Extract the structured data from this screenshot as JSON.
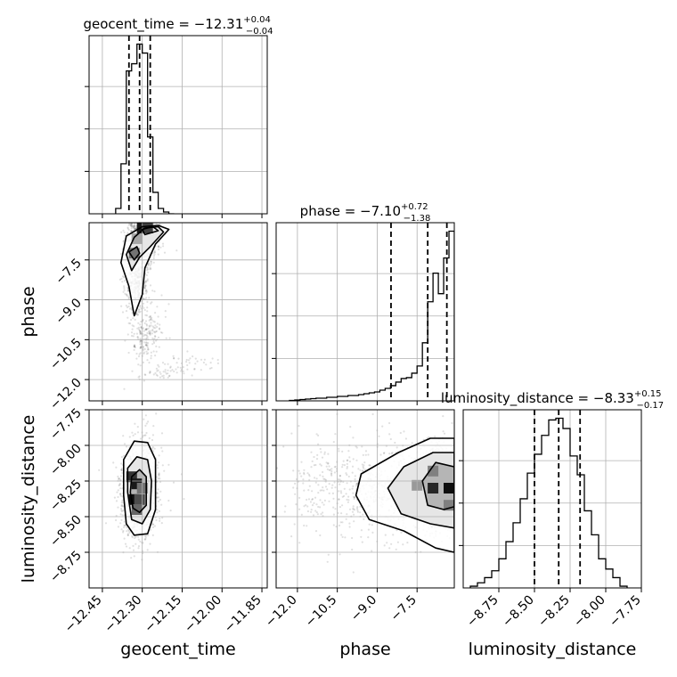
{
  "chart_data": {
    "type": "corner",
    "parameters": [
      "geocent_time",
      "phase",
      "luminosity_distance"
    ],
    "axis_labels": {
      "geocent_time": "geocent_time",
      "phase": "phase",
      "luminosity_distance": "luminosity_distance"
    },
    "ranges": {
      "geocent_time": [
        -12.5,
        -11.83
      ],
      "phase": [
        -12.8,
        -6.1
      ],
      "luminosity_distance": [
        -9.0,
        -7.75
      ]
    },
    "ticks": {
      "geocent_time": {
        "values": [
          -12.45,
          -12.3,
          -12.15,
          -12.0,
          -11.85
        ],
        "labels": [
          "−12.45",
          "−12.30",
          "−12.15",
          "−12.00",
          "−11.85"
        ]
      },
      "phase": {
        "values": [
          -12.0,
          -10.5,
          -9.0,
          -7.5
        ],
        "labels": [
          "−12.0",
          "−10.5",
          "−9.0",
          "−7.5"
        ]
      },
      "luminosity_distance": {
        "values": [
          -8.75,
          -8.5,
          -8.25,
          -8.0,
          -7.75
        ],
        "labels": [
          "−8.75",
          "−8.50",
          "−8.25",
          "−8.00",
          "−7.75"
        ]
      }
    },
    "titles": {
      "geocent_time": {
        "text": "geocent_time = −12.31",
        "plus": "+0.04",
        "minus": "−0.04"
      },
      "phase": {
        "text": "phase = −7.10",
        "plus": "+0.72",
        "minus": "−1.38"
      },
      "luminosity_distance": {
        "text": "luminosity_distance = −8.33",
        "plus": "+0.15",
        "minus": "−0.17"
      }
    },
    "quantiles": {
      "geocent_time": [
        -12.35,
        -12.31,
        -12.27
      ],
      "phase": [
        -8.48,
        -7.1,
        -6.38
      ],
      "luminosity_distance": [
        -8.5,
        -8.33,
        -8.18
      ]
    },
    "histograms": {
      "geocent_time": {
        "edges": [
          -12.4,
          -12.38,
          -12.36,
          -12.34,
          -12.32,
          -12.3,
          -12.28,
          -12.26,
          -12.24,
          -12.22,
          -12.2,
          -12.18
        ],
        "counts": [
          3,
          28,
          80,
          84,
          95,
          90,
          43,
          12,
          3,
          1,
          0
        ]
      },
      "phase": {
        "edges": [
          -12.3,
          -12.1,
          -11.9,
          -11.7,
          -11.5,
          -11.3,
          -11.1,
          -10.9,
          -10.7,
          -10.5,
          -10.3,
          -10.1,
          -9.9,
          -9.7,
          -9.5,
          -9.3,
          -9.1,
          -8.9,
          -8.7,
          -8.5,
          -8.3,
          -8.1,
          -7.9,
          -7.7,
          -7.5,
          -7.3,
          -7.1,
          -6.9,
          -6.7,
          -6.5,
          -6.3,
          -6.1
        ],
        "counts": [
          0.5,
          1,
          1.5,
          2,
          2.5,
          3,
          3,
          4,
          4,
          5,
          5,
          6,
          6,
          7,
          8,
          9,
          10,
          12,
          14,
          17,
          21,
          25,
          26,
          31,
          39,
          65,
          111,
          143,
          120,
          160,
          190
        ]
      },
      "luminosity_distance": {
        "edges": [
          -8.95,
          -8.9,
          -8.85,
          -8.8,
          -8.75,
          -8.7,
          -8.65,
          -8.6,
          -8.55,
          -8.5,
          -8.45,
          -8.4,
          -8.35,
          -8.3,
          -8.25,
          -8.2,
          -8.15,
          -8.1,
          -8.05,
          -8.0,
          -7.95,
          -7.9,
          -7.85
        ],
        "counts": [
          1,
          3,
          6,
          10,
          17,
          27,
          38,
          52,
          67,
          78,
          89,
          98,
          99,
          93,
          77,
          66,
          45,
          31,
          17,
          11,
          6,
          1
        ]
      }
    },
    "pairs": [
      {
        "x": "geocent_time",
        "y": "phase",
        "seed": 11,
        "clusters": [
          {
            "cx": -12.3,
            "cy": -6.7,
            "sx": 0.028,
            "sy": 0.4,
            "n": 900,
            "rho": 0.1
          },
          {
            "cx": -12.32,
            "cy": -8.3,
            "sx": 0.022,
            "sy": 0.75,
            "n": 520,
            "rho": 0.0
          },
          {
            "cx": -12.28,
            "cy": -10.4,
            "sx": 0.03,
            "sy": 0.5,
            "n": 180,
            "rho": 0.4
          },
          {
            "cx": -12.18,
            "cy": -11.6,
            "sx": 0.07,
            "sy": 0.25,
            "n": 80,
            "rho": 0.6
          }
        ],
        "contours": [
          [
            [
              -12.33,
              -9.6
            ],
            [
              -12.35,
              -8.5
            ],
            [
              -12.38,
              -7.6
            ],
            [
              -12.36,
              -6.6
            ],
            [
              -12.3,
              -6.25
            ],
            [
              -12.24,
              -6.2
            ],
            [
              -12.2,
              -6.35
            ],
            [
              -12.25,
              -6.9
            ],
            [
              -12.29,
              -7.8
            ],
            [
              -12.3,
              -8.8
            ]
          ],
          [
            [
              -12.34,
              -7.9
            ],
            [
              -12.36,
              -7.3
            ],
            [
              -12.33,
              -6.65
            ],
            [
              -12.29,
              -6.3
            ],
            [
              -12.24,
              -6.25
            ],
            [
              -12.22,
              -6.45
            ],
            [
              -12.27,
              -7.0
            ],
            [
              -12.31,
              -7.4
            ]
          ],
          [
            [
              -12.33,
              -7.5
            ],
            [
              -12.35,
              -7.2
            ],
            [
              -12.32,
              -7.0
            ],
            [
              -12.31,
              -7.25
            ]
          ],
          [
            [
              -12.29,
              -6.55
            ],
            [
              -12.3,
              -6.35
            ],
            [
              -12.26,
              -6.25
            ],
            [
              -12.24,
              -6.4
            ]
          ]
        ],
        "density_cells": [
          {
            "x": -12.33,
            "y": -7.25,
            "v": 0.55
          },
          {
            "x": -12.3,
            "y": -6.3,
            "v": 0.9
          },
          {
            "x": -12.28,
            "y": -6.3,
            "v": 0.75
          },
          {
            "x": -12.32,
            "y": -6.7,
            "v": 0.35
          }
        ]
      },
      {
        "x": "geocent_time",
        "y": "luminosity_distance",
        "seed": 23,
        "clusters": [
          {
            "cx": -12.315,
            "cy": -8.33,
            "sx": 0.03,
            "sy": 0.15,
            "n": 1500,
            "rho": 0.05
          },
          {
            "cx": -12.3,
            "cy": -8.25,
            "sx": 0.06,
            "sy": 0.2,
            "n": 120,
            "rho": 0.0
          }
        ],
        "contours": [
          [
            [
              -12.37,
              -8.35
            ],
            [
              -12.37,
              -8.1
            ],
            [
              -12.33,
              -7.97
            ],
            [
              -12.28,
              -7.98
            ],
            [
              -12.25,
              -8.1
            ],
            [
              -12.25,
              -8.45
            ],
            [
              -12.28,
              -8.62
            ],
            [
              -12.33,
              -8.63
            ],
            [
              -12.36,
              -8.55
            ]
          ],
          [
            [
              -12.355,
              -8.33
            ],
            [
              -12.355,
              -8.16
            ],
            [
              -12.32,
              -8.08
            ],
            [
              -12.28,
              -8.1
            ],
            [
              -12.265,
              -8.25
            ],
            [
              -12.27,
              -8.45
            ],
            [
              -12.3,
              -8.55
            ],
            [
              -12.34,
              -8.52
            ]
          ],
          [
            [
              -12.345,
              -8.33
            ],
            [
              -12.34,
              -8.22
            ],
            [
              -12.31,
              -8.17
            ],
            [
              -12.285,
              -8.22
            ],
            [
              -12.285,
              -8.42
            ],
            [
              -12.31,
              -8.47
            ],
            [
              -12.335,
              -8.44
            ]
          ]
        ],
        "density_cells": [
          {
            "x": -12.34,
            "y": -8.22,
            "v": 0.8
          },
          {
            "x": -12.32,
            "y": -8.27,
            "v": 0.9
          },
          {
            "x": -12.33,
            "y": -8.38,
            "v": 0.95
          },
          {
            "x": -12.31,
            "y": -8.38,
            "v": 0.7
          },
          {
            "x": -12.3,
            "y": -8.3,
            "v": 0.55
          },
          {
            "x": -12.32,
            "y": -8.45,
            "v": 0.6
          }
        ]
      },
      {
        "x": "phase",
        "y": "luminosity_distance",
        "seed": 37,
        "clusters": [
          {
            "cx": -6.7,
            "cy": -8.3,
            "sx": 0.6,
            "sy": 0.15,
            "n": 1000,
            "rho": 0.05
          },
          {
            "cx": -8.8,
            "cy": -8.3,
            "sx": 1.2,
            "sy": 0.17,
            "n": 550,
            "rho": 0.0
          },
          {
            "cx": -11.0,
            "cy": -8.3,
            "sx": 0.8,
            "sy": 0.18,
            "n": 150,
            "rho": 0.0
          }
        ],
        "contours": [
          [
            [
              -6.1,
              -7.95
            ],
            [
              -7.0,
              -7.95
            ],
            [
              -8.2,
              -8.05
            ],
            [
              -9.6,
              -8.2
            ],
            [
              -9.8,
              -8.35
            ],
            [
              -9.3,
              -8.52
            ],
            [
              -8.0,
              -8.6
            ],
            [
              -6.8,
              -8.72
            ],
            [
              -6.1,
              -8.75
            ]
          ],
          [
            [
              -6.1,
              -8.05
            ],
            [
              -6.9,
              -8.05
            ],
            [
              -8.0,
              -8.15
            ],
            [
              -8.6,
              -8.3
            ],
            [
              -8.1,
              -8.48
            ],
            [
              -7.0,
              -8.55
            ],
            [
              -6.1,
              -8.58
            ]
          ],
          [
            [
              -6.1,
              -8.15
            ],
            [
              -6.8,
              -8.12
            ],
            [
              -7.3,
              -8.25
            ],
            [
              -7.1,
              -8.42
            ],
            [
              -6.5,
              -8.45
            ],
            [
              -6.1,
              -8.43
            ]
          ]
        ],
        "density_cells": [
          {
            "x": -6.3,
            "y": -8.3,
            "v": 0.95
          },
          {
            "x": -6.9,
            "y": -8.3,
            "v": 0.85
          },
          {
            "x": -7.5,
            "y": -8.28,
            "v": 0.4
          },
          {
            "x": -6.3,
            "y": -8.42,
            "v": 0.5
          },
          {
            "x": -6.9,
            "y": -8.18,
            "v": 0.5
          }
        ]
      }
    ],
    "grid": true
  }
}
